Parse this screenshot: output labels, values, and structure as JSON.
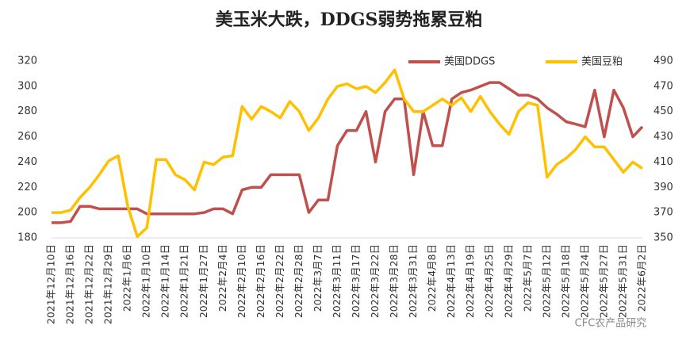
{
  "chart_data": {
    "type": "line",
    "title": "美玉米大跌，DDGS弱势拖累豆粕",
    "watermark": "CFC农产品研究",
    "legend": "top-right",
    "grid": false,
    "categories": [
      "2021年12月10日",
      null,
      "2021年12月16日",
      null,
      "2021年12月22日",
      null,
      "2021年12月29日",
      null,
      "2022年1月6日",
      null,
      "2022年1月10日",
      null,
      "2022年1月14日",
      null,
      "2022年1月21日",
      null,
      "2022年1月27日",
      null,
      "2022年2月4日",
      null,
      "2022年2月10日",
      null,
      "2022年2月16日",
      null,
      "2022年2月22日",
      null,
      "2022年2月28日",
      null,
      "2022年3月7日",
      null,
      "2022年3月11日",
      null,
      "2022年3月17日",
      null,
      "2022年3月22日",
      null,
      "2022年3月28日",
      null,
      "2022年3月31日",
      null,
      "2022年4月8日",
      null,
      "2022年4月13日",
      null,
      "2022年4月19日",
      null,
      "2022年4月25日",
      null,
      "2022年4月29日",
      null,
      "2022年5月7日",
      null,
      "2022年5月12日",
      null,
      "2022年5月18日",
      null,
      "2022年5月24日",
      null,
      "2022年5月27日",
      null,
      "2022年5月31日",
      null,
      "2022年6月2日"
    ],
    "series": [
      {
        "name": "美国DDGS",
        "color": "#c0504d",
        "axis": "y",
        "values": [
          192,
          192,
          193,
          205,
          205,
          203,
          203,
          203,
          203,
          203,
          199,
          199,
          199,
          199,
          199,
          199,
          200,
          203,
          203,
          199,
          218,
          220,
          220,
          230,
          230,
          230,
          230,
          200,
          210,
          210,
          253,
          265,
          265,
          280,
          240,
          280,
          290,
          290,
          230,
          280,
          253,
          253,
          290,
          295,
          297,
          300,
          303,
          303,
          298,
          293,
          293,
          290,
          283,
          278,
          272,
          270,
          268,
          297,
          260,
          297,
          283,
          260,
          268
        ]
      },
      {
        "name": "美国豆粕",
        "color": "#ffc000",
        "axis": "y2",
        "values": [
          370,
          370,
          372,
          382,
          390,
          400,
          411,
          415,
          375,
          351,
          358,
          412,
          412,
          400,
          396,
          388,
          410,
          408,
          414,
          415,
          454,
          444,
          454,
          450,
          445,
          458,
          450,
          435,
          445,
          460,
          470,
          472,
          468,
          470,
          465,
          473,
          483,
          460,
          450,
          450,
          455,
          460,
          455,
          461,
          450,
          462,
          450,
          440,
          432,
          450,
          457,
          455,
          398,
          408,
          413,
          420,
          430,
          422,
          422,
          412,
          402,
          410,
          405
        ]
      }
    ],
    "ylim": [
      180,
      320
    ],
    "yticks": [
      180,
      200,
      220,
      240,
      260,
      280,
      300,
      320
    ],
    "y2lim": [
      350,
      490
    ],
    "y2ticks": [
      350,
      370,
      390,
      410,
      430,
      450,
      470,
      490
    ]
  }
}
